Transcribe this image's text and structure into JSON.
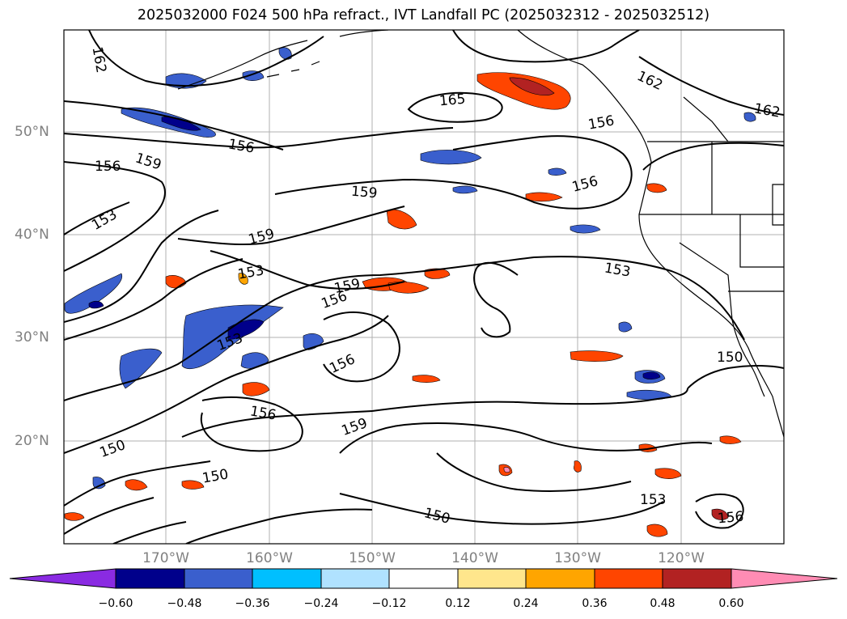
{
  "title": "2025032000 F024 500 hPa refract., IVT Landfall PC (2025032312 - 2025032512)",
  "lat_labels": [
    "50°N",
    "40°N",
    "30°N",
    "20°N"
  ],
  "lon_labels": [
    "170°W",
    "160°W",
    "150°W",
    "140°W",
    "130°W",
    "120°W"
  ],
  "contour_labels": [
    "162",
    "165",
    "156",
    "159",
    "156",
    "159",
    "156",
    "153",
    "159",
    "153",
    "159",
    "156",
    "153",
    "153",
    "156",
    "150",
    "156",
    "159",
    "150",
    "150",
    "150",
    "153",
    "156",
    "162",
    "162",
    "156"
  ],
  "colorbar": {
    "ticks": [
      "−0.60",
      "−0.48",
      "−0.36",
      "−0.24",
      "−0.12",
      "0.12",
      "0.24",
      "0.36",
      "0.48",
      "0.60"
    ],
    "colors": [
      "#8a2be2",
      "#00008b",
      "#3a5fcd",
      "#00bfff",
      "#b0e2ff",
      "#ffffff",
      "#ffe68c",
      "#ffa500",
      "#ff4500",
      "#b22222",
      "#ff8cb4"
    ]
  }
}
